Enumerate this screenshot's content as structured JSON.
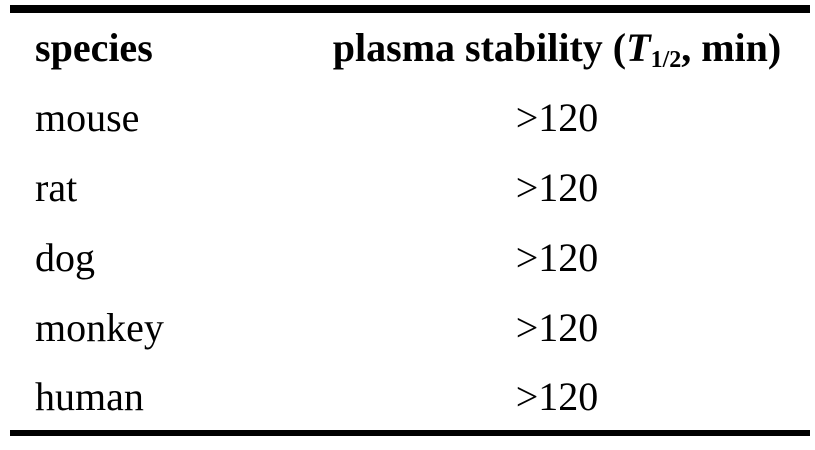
{
  "colors": {
    "background": "#ffffff",
    "text": "#000000",
    "rule": "#000000"
  },
  "table": {
    "header": {
      "species": "species",
      "value_prefix": "plasma stability (",
      "value_t": "T",
      "value_sub": "1/2",
      "value_suffix": ", min)"
    },
    "rows": [
      {
        "species": "mouse",
        "value": ">120"
      },
      {
        "species": "rat",
        "value": ">120"
      },
      {
        "species": "dog",
        "value": ">120"
      },
      {
        "species": "monkey",
        "value": ">120"
      },
      {
        "species": "human",
        "value": ">120"
      }
    ]
  },
  "chart_data": {
    "type": "table",
    "columns": [
      "species",
      "plasma stability (T1/2, min)"
    ],
    "rows": [
      [
        "mouse",
        ">120"
      ],
      [
        "rat",
        ">120"
      ],
      [
        "dog",
        ">120"
      ],
      [
        "monkey",
        ">120"
      ],
      [
        "human",
        ">120"
      ]
    ]
  }
}
